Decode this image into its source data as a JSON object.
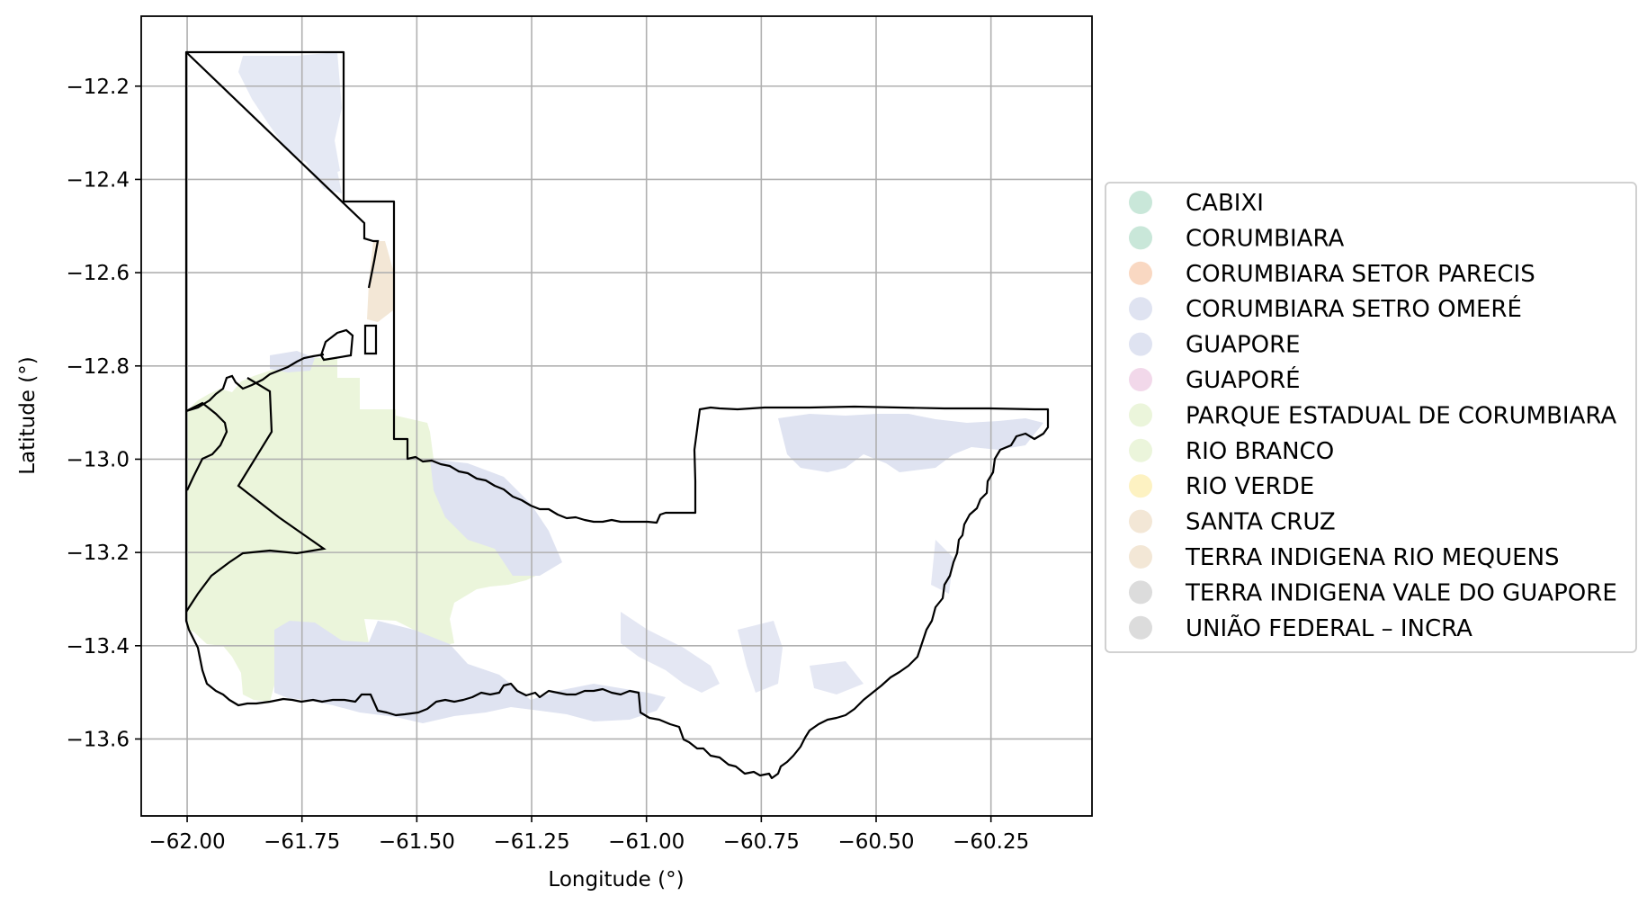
{
  "map": {
    "xlabel": "Longitude (°)",
    "ylabel": "Latitude (°)",
    "grid": true,
    "xlim": [
      -62.1,
      -60.03
    ],
    "ylim": [
      -13.765,
      -12.05
    ],
    "x_ticks": [
      -62.0,
      -61.75,
      -61.5,
      -61.25,
      -61.0,
      -60.75,
      -60.5,
      -60.25
    ],
    "x_tick_labels": [
      "−62.00",
      "−61.75",
      "−61.50",
      "−61.25",
      "−61.00",
      "−60.75",
      "−60.50",
      "−60.25"
    ],
    "y_ticks": [
      -12.2,
      -12.4,
      -12.6,
      -12.8,
      -13.0,
      -13.2,
      -13.4,
      -13.6
    ],
    "y_tick_labels": [
      "−12.2",
      "−12.4",
      "−12.6",
      "−12.8",
      "−13.0",
      "−13.2",
      "−13.4",
      "−13.6"
    ],
    "legend_position": "right",
    "legend": [
      {
        "label": "CABIXI",
        "color": "#c9e7d9"
      },
      {
        "label": "CORUMBIARA",
        "color": "#c9e7d9"
      },
      {
        "label": "CORUMBIARA SETOR PARECIS",
        "color": "#f9d8c2"
      },
      {
        "label": "CORUMBIARA SETRO OMERÉ",
        "color": "#dfe3f1"
      },
      {
        "label": "GUAPORE",
        "color": "#dfe3f1"
      },
      {
        "label": "GUAPORÉ",
        "color": "#f2d8ea"
      },
      {
        "label": "PARQUE ESTADUAL DE CORUMBIARA",
        "color": "#ebf5db"
      },
      {
        "label": "RIO BRANCO",
        "color": "#ebf5db"
      },
      {
        "label": "RIO VERDE",
        "color": "#fdf2c2"
      },
      {
        "label": "SANTA CRUZ",
        "color": "#f3e7d6"
      },
      {
        "label": "TERRA INDIGENA RIO MEQUENS",
        "color": "#f3e7d6"
      },
      {
        "label": "TERRA INDIGENA VALE DO GUAPORE",
        "color": "#dcdcdc"
      },
      {
        "label": "UNIÃO FEDERAL – INCRA",
        "color": "#dcdcdc"
      }
    ],
    "colors": {
      "boundary": "#000000",
      "green_area": "#ebf5db",
      "blue_area": "#dfe3f1",
      "tan_area": "#f3e7d6",
      "grid": "#b0b0b0"
    }
  }
}
